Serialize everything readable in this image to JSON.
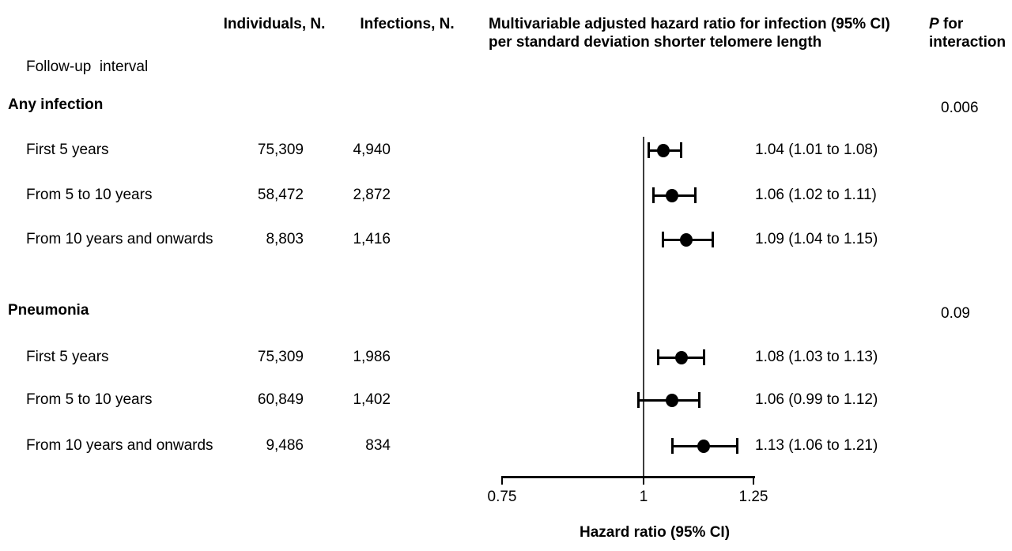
{
  "figure": {
    "headers": {
      "individuals": "Individuals, N.",
      "infections": "Infections, N.",
      "hr_line1": "Multivariable adjusted hazard ratio for infection (95% CI)",
      "hr_line2": "per standard deviation shorter telomere length",
      "p_italic": "P",
      "p_rest": " for",
      "p_line2": "interaction",
      "followup": "Follow-up  interval"
    },
    "colors": {
      "ink": "#000000",
      "ref_line": "#3d3d3d"
    }
  },
  "chart_data": {
    "type": "forest",
    "xlabel": "Hazard ratio (95% CI)",
    "axis": {
      "scale": "log",
      "min": 0.75,
      "max": 1.25,
      "tick_values": [
        0.75,
        1,
        1.25
      ],
      "tick_labels": [
        "0.75",
        "1",
        "1.25"
      ],
      "ref_line": 1
    },
    "groups": [
      {
        "label": "Any infection",
        "p_interaction": "0.006",
        "rows": [
          {
            "label": "First 5 years",
            "individuals": "75,309",
            "infections": "4,940",
            "hr": 1.04,
            "lo": 1.01,
            "hi": 1.08,
            "estimate_text": "1.04 (1.01 to 1.08)"
          },
          {
            "label": "From 5 to 10 years",
            "individuals": "58,472",
            "infections": "2,872",
            "hr": 1.06,
            "lo": 1.02,
            "hi": 1.11,
            "estimate_text": "1.06 (1.02 to 1.11)"
          },
          {
            "label": "From 10 years and onwards",
            "individuals": "8,803",
            "infections": "1,416",
            "hr": 1.09,
            "lo": 1.04,
            "hi": 1.15,
            "estimate_text": "1.09 (1.04 to 1.15)"
          }
        ]
      },
      {
        "label": "Pneumonia",
        "p_interaction": "0.09",
        "rows": [
          {
            "label": "First 5 years",
            "individuals": "75,309",
            "infections": "1,986",
            "hr": 1.08,
            "lo": 1.03,
            "hi": 1.13,
            "estimate_text": "1.08 (1.03 to 1.13)"
          },
          {
            "label": "From 5 to 10 years",
            "individuals": "60,849",
            "infections": "1,402",
            "hr": 1.06,
            "lo": 0.99,
            "hi": 1.12,
            "estimate_text": "1.06 (0.99 to 1.12)"
          },
          {
            "label": "From 10 years and onwards",
            "individuals": "9,486",
            "infections": "834",
            "hr": 1.13,
            "lo": 1.06,
            "hi": 1.21,
            "estimate_text": "1.13 (1.06 to 1.21)"
          }
        ]
      }
    ]
  }
}
